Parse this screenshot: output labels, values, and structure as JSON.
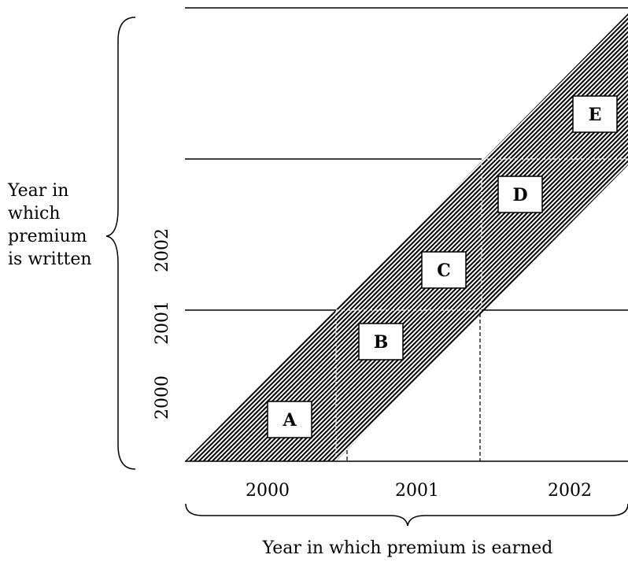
{
  "y_axis": {
    "title_lines": [
      "Year in",
      "which",
      "premium",
      "is written"
    ],
    "years": [
      "2000",
      "2001",
      "2002"
    ]
  },
  "x_axis": {
    "title": "Year in which premium is earned",
    "years": [
      "2000",
      "2001",
      "2002"
    ]
  },
  "regions": [
    "A",
    "B",
    "C",
    "D",
    "E"
  ],
  "colors": {
    "line": "#000000",
    "hatch": "#000000",
    "background": "#ffffff"
  }
}
